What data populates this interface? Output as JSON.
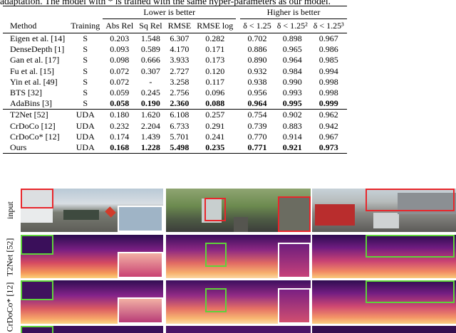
{
  "caption": "adaptation. The model with * is trained with the same hyper-parameters as our model.",
  "table": {
    "group_lower": "Lower is better",
    "group_higher": "Higher is better",
    "headers": [
      "Method",
      "Training",
      "Abs Rel",
      "Sq Rel",
      "RMSE",
      "RMSE log",
      "δ < 1.25",
      "δ < 1.25²",
      "δ < 1.25³"
    ],
    "supervised_rows": [
      [
        "Eigen et al. [14]",
        "S",
        "0.203",
        "1.548",
        "6.307",
        "0.282",
        "0.702",
        "0.898",
        "0.967"
      ],
      [
        "DenseDepth [1]",
        "S",
        "0.093",
        "0.589",
        "4.170",
        "0.171",
        "0.886",
        "0.965",
        "0.986"
      ],
      [
        "Gan et al. [17]",
        "S",
        "0.098",
        "0.666",
        "3.933",
        "0.173",
        "0.890",
        "0.964",
        "0.985"
      ],
      [
        "Fu et al. [15]",
        "S",
        "0.072",
        "0.307",
        "2.727",
        "0.120",
        "0.932",
        "0.984",
        "0.994"
      ],
      [
        "Yin et al. [49]",
        "S",
        "0.072",
        "-",
        "3.258",
        "0.117",
        "0.938",
        "0.990",
        "0.998"
      ],
      [
        "BTS [32]",
        "S",
        "0.059",
        "0.245",
        "2.756",
        "0.096",
        "0.956",
        "0.993",
        "0.998"
      ],
      [
        "AdaBins [3]",
        "S",
        "0.058",
        "0.190",
        "2.360",
        "0.088",
        "0.964",
        "0.995",
        "0.999"
      ]
    ],
    "uda_rows": [
      [
        "T2Net [52]",
        "UDA",
        "0.180",
        "1.620",
        "6.108",
        "0.257",
        "0.754",
        "0.902",
        "0.962"
      ],
      [
        "CrDoCo [12]",
        "UDA",
        "0.232",
        "2.204",
        "6.733",
        "0.291",
        "0.739",
        "0.883",
        "0.942"
      ],
      [
        "CrDoCo* [12]",
        "UDA",
        "0.174",
        "1.439",
        "5.701",
        "0.241",
        "0.770",
        "0.914",
        "0.967"
      ],
      [
        "Ours",
        "UDA",
        "0.168",
        "1.228",
        "5.498",
        "0.235",
        "0.771",
        "0.921",
        "0.973"
      ]
    ]
  },
  "figure": {
    "row_labels": [
      "input",
      "T2Net [52]",
      "CrDoCo* [12]"
    ],
    "colors": {
      "red": "#e8262b",
      "green": "#5fd23a",
      "white": "#ffffff"
    }
  }
}
